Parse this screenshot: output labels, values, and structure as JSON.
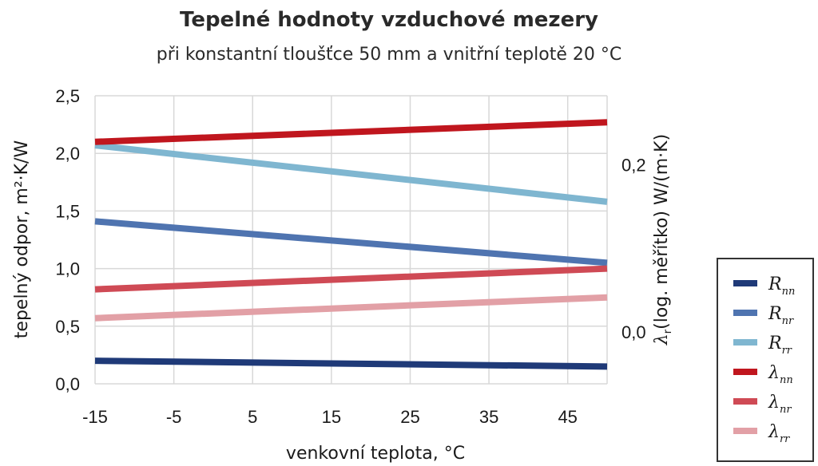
{
  "chart_data": {
    "type": "line",
    "title": "Tepelné hodnoty vzduchové mezery",
    "subtitle": "při konstantní tloušťce 50 mm a vnitřní teplotě 20 °C",
    "xlabel": "venkovní teplota, °C",
    "ylabel": "tepelný odpor, m²·K/W",
    "ylabel_right_symbol": "λ",
    "ylabel_right_sub": "r",
    "ylabel_right_rest": "(log. měřítko) W/(m·K)",
    "x_ticks": [
      "-15",
      "-5",
      "5",
      "15",
      "25",
      "35",
      "45"
    ],
    "x_tick_values": [
      -15,
      -5,
      5,
      15,
      25,
      35,
      45
    ],
    "y_ticks": [
      "0,0",
      "0,5",
      "1,0",
      "1,5",
      "2,0",
      "2,5"
    ],
    "y_tick_values": [
      0,
      0.5,
      1.0,
      1.5,
      2.0,
      2.5
    ],
    "y2_ticks": [
      "0,0",
      "0,2"
    ],
    "y2_tick_positions_in_y_units": [
      0.45,
      1.9
    ],
    "xlim": [
      -15,
      50
    ],
    "ylim": [
      0,
      2.5
    ],
    "grid": true,
    "legend_position": "right",
    "x": [
      -15,
      50
    ],
    "series": [
      {
        "symbol": "R",
        "sub": "nn",
        "color": "#1f3a78",
        "values": [
          0.2,
          0.15
        ]
      },
      {
        "symbol": "R",
        "sub": "nr",
        "color": "#4f74b0",
        "values": [
          1.41,
          1.05
        ]
      },
      {
        "symbol": "R",
        "sub": "rr",
        "color": "#7fb6d0",
        "values": [
          2.07,
          1.58
        ]
      },
      {
        "symbol": "λ",
        "sub": "nn",
        "color": "#c0161e",
        "values": [
          2.1,
          2.27
        ]
      },
      {
        "symbol": "λ",
        "sub": "nr",
        "color": "#cf4a55",
        "values": [
          0.82,
          1.0
        ]
      },
      {
        "symbol": "λ",
        "sub": "rr",
        "color": "#e2a0a6",
        "values": [
          0.57,
          0.75
        ]
      }
    ]
  }
}
